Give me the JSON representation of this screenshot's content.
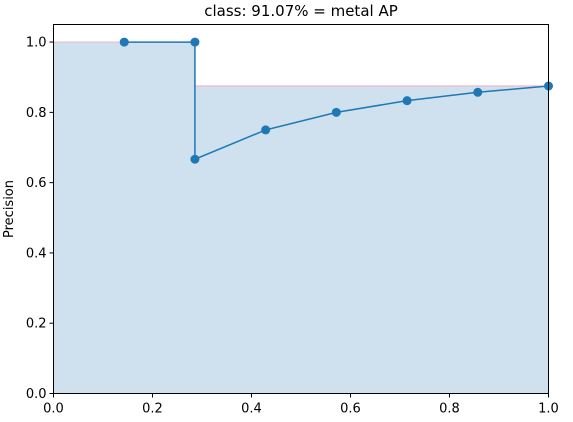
{
  "chart_data": {
    "type": "area",
    "title": "class: 91.07% = metal AP",
    "xlabel": "",
    "ylabel": "Precision",
    "xlim": [
      0.0,
      1.0
    ],
    "ylim": [
      0.0,
      1.05
    ],
    "grid": false,
    "x_ticks": [
      0.0,
      0.2,
      0.4,
      0.6,
      0.8,
      1.0
    ],
    "x_tick_labels": [
      "0.0",
      "0.2",
      "0.4",
      "0.6",
      "0.8",
      "1.0"
    ],
    "y_ticks": [
      0.0,
      0.2,
      0.4,
      0.6,
      0.8,
      1.0
    ],
    "y_tick_labels": [
      "0.0",
      "0.2",
      "0.4",
      "0.6",
      "0.8",
      "1.0"
    ],
    "series": [
      {
        "x": [
          0.1429,
          0.2857,
          0.2857,
          0.4286,
          0.5714,
          0.7143,
          0.8571,
          1.0
        ],
        "y": [
          1.0,
          1.0,
          0.6667,
          0.75,
          0.8,
          0.8333,
          0.8571,
          0.875
        ],
        "color": "#1f77b4"
      }
    ],
    "interpolated_precision": {
      "x": [
        0.0,
        0.2857,
        0.2857,
        1.0
      ],
      "y": [
        1.0,
        1.0,
        0.875,
        0.875
      ],
      "line_color": "#f2b8c6",
      "fill_color": "#cfe1ef"
    }
  }
}
